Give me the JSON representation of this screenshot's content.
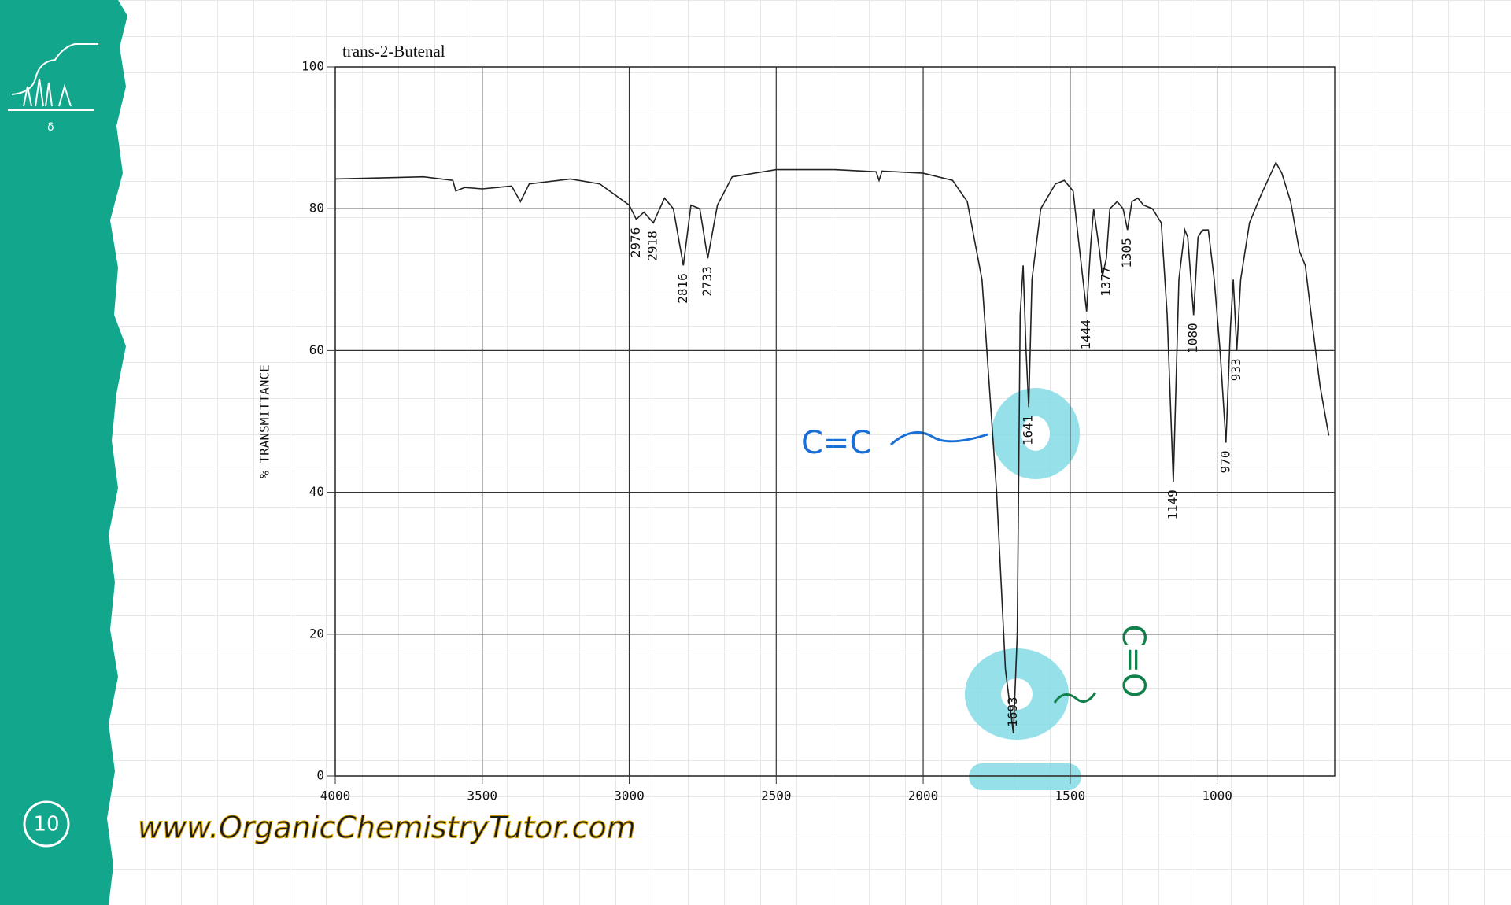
{
  "chart_data": {
    "type": "line",
    "title": "trans-2-Butenal",
    "y_label": "% TRANSMITTANCE",
    "x": [
      4000,
      3700,
      3600,
      3590,
      3560,
      3500,
      3400,
      3370,
      3340,
      3200,
      3100,
      3050,
      3000,
      2976,
      2950,
      2918,
      2880,
      2850,
      2816,
      2790,
      2760,
      2733,
      2700,
      2650,
      2500,
      2300,
      2160,
      2150,
      2140,
      2000,
      1900,
      1850,
      1800,
      1750,
      1720,
      1693,
      1680,
      1670,
      1660,
      1650,
      1641,
      1630,
      1600,
      1550,
      1520,
      1490,
      1470,
      1444,
      1430,
      1420,
      1400,
      1390,
      1377,
      1365,
      1340,
      1320,
      1305,
      1290,
      1270,
      1250,
      1220,
      1190,
      1170,
      1149,
      1130,
      1110,
      1100,
      1080,
      1065,
      1050,
      1030,
      1010,
      990,
      970,
      955,
      945,
      933,
      920,
      890,
      850,
      800,
      780,
      750,
      720,
      700,
      680,
      650,
      620
    ],
    "values": [
      84.2,
      84.5,
      84.0,
      82.5,
      83.0,
      82.8,
      83.2,
      81.0,
      83.5,
      84.2,
      83.5,
      82.0,
      80.5,
      78.5,
      79.5,
      78.0,
      81.5,
      80.0,
      72.0,
      80.5,
      80.0,
      73.0,
      80.5,
      84.5,
      85.5,
      85.5,
      85.2,
      84.0,
      85.3,
      85.0,
      84.0,
      81.0,
      70.0,
      40.0,
      15.0,
      6.0,
      20.0,
      65.0,
      72.0,
      60.0,
      52.0,
      70.0,
      80.0,
      83.5,
      84.0,
      82.5,
      75.0,
      65.5,
      75.0,
      80.0,
      74.0,
      70.5,
      73.0,
      80.0,
      81.0,
      80.0,
      77.0,
      81.0,
      81.5,
      80.5,
      80.0,
      78.0,
      65.0,
      41.5,
      70.0,
      77.0,
      76.0,
      65.0,
      76.0,
      77.0,
      77.0,
      70.0,
      60.0,
      47.0,
      63.0,
      70.0,
      60.0,
      70.0,
      78.0,
      82.0,
      86.5,
      85.0,
      81.0,
      74.0,
      72.0,
      65.0,
      55.0,
      48.0
    ],
    "color": "#222222",
    "xlim": [
      4000,
      600
    ],
    "xticks": [
      4000,
      3500,
      3000,
      2500,
      2000,
      1500,
      1000
    ],
    "ylim": [
      0,
      100
    ],
    "yticks": [
      0,
      20,
      40,
      60,
      80,
      100
    ],
    "grid": true,
    "peak_labels": [
      2976,
      2918,
      2816,
      2733,
      1693,
      1641,
      1444,
      1377,
      1305,
      1149,
      1080,
      970,
      933
    ],
    "annotations": [
      "C=C",
      "C=O"
    ]
  },
  "website": "www.OrganicChemistryTutor.com",
  "slide_number": "10"
}
